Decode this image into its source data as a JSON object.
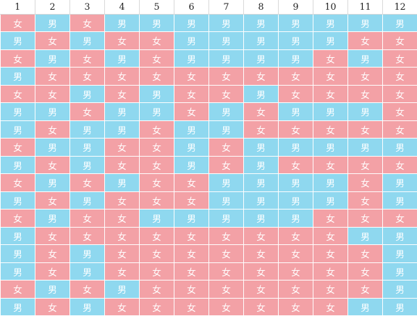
{
  "legend": {
    "male": "男",
    "female": "女"
  },
  "colors": {
    "male": "#8fd8ef",
    "female": "#f3a1a6"
  },
  "columns": [
    "1",
    "2",
    "3",
    "4",
    "5",
    "6",
    "7",
    "8",
    "9",
    "10",
    "11",
    "12"
  ],
  "rows": [
    [
      "女",
      "男",
      "女",
      "男",
      "男",
      "男",
      "男",
      "男",
      "男",
      "男",
      "男",
      "男"
    ],
    [
      "男",
      "女",
      "男",
      "女",
      "女",
      "男",
      "男",
      "男",
      "男",
      "男",
      "女",
      "女"
    ],
    [
      "女",
      "男",
      "女",
      "男",
      "女",
      "男",
      "男",
      "男",
      "男",
      "女",
      "男",
      "女"
    ],
    [
      "男",
      "女",
      "女",
      "女",
      "女",
      "女",
      "女",
      "女",
      "女",
      "女",
      "女",
      "女"
    ],
    [
      "女",
      "女",
      "男",
      "女",
      "男",
      "女",
      "女",
      "男",
      "女",
      "女",
      "女",
      "女"
    ],
    [
      "男",
      "男",
      "女",
      "男",
      "男",
      "女",
      "男",
      "女",
      "男",
      "男",
      "男",
      "女"
    ],
    [
      "男",
      "女",
      "男",
      "男",
      "女",
      "男",
      "男",
      "女",
      "女",
      "女",
      "女",
      "女"
    ],
    [
      "女",
      "男",
      "男",
      "女",
      "女",
      "男",
      "女",
      "男",
      "男",
      "男",
      "男",
      "男"
    ],
    [
      "男",
      "女",
      "男",
      "女",
      "女",
      "男",
      "女",
      "男",
      "女",
      "女",
      "女",
      "女"
    ],
    [
      "女",
      "男",
      "女",
      "男",
      "女",
      "女",
      "男",
      "男",
      "男",
      "男",
      "女",
      "男"
    ],
    [
      "男",
      "女",
      "男",
      "女",
      "女",
      "女",
      "男",
      "男",
      "男",
      "男",
      "女",
      "男"
    ],
    [
      "女",
      "男",
      "女",
      "女",
      "男",
      "男",
      "男",
      "男",
      "男",
      "女",
      "女",
      "女"
    ],
    [
      "男",
      "女",
      "女",
      "女",
      "女",
      "女",
      "女",
      "女",
      "女",
      "女",
      "男",
      "男"
    ],
    [
      "男",
      "女",
      "男",
      "女",
      "女",
      "女",
      "女",
      "女",
      "女",
      "女",
      "女",
      "男"
    ],
    [
      "男",
      "女",
      "男",
      "女",
      "女",
      "女",
      "女",
      "女",
      "女",
      "女",
      "女",
      "男"
    ],
    [
      "女",
      "男",
      "女",
      "男",
      "女",
      "女",
      "女",
      "女",
      "女",
      "女",
      "女",
      "男"
    ],
    [
      "男",
      "女",
      "男",
      "女",
      "女",
      "女",
      "女",
      "女",
      "女",
      "女",
      "男",
      "男"
    ]
  ]
}
